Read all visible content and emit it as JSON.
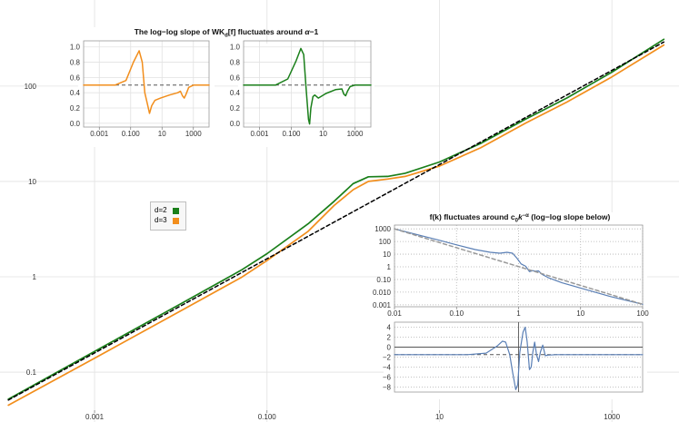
{
  "chart_data": [
    {
      "id": "main",
      "type": "line",
      "title": "",
      "xscale": "log",
      "yscale": "log",
      "xlim": [
        8e-05,
        6000
      ],
      "ylim": [
        0.03,
        800
      ],
      "xticks": [
        0.001,
        0.1,
        10,
        1000
      ],
      "xtick_labels": [
        "0.001",
        "0.100",
        "10",
        "1000"
      ],
      "yticks": [
        0.1,
        1,
        10,
        100
      ],
      "ytick_labels": [
        "0.1",
        "1",
        "10",
        "100"
      ],
      "grid": true,
      "legend": {
        "position": "center-left",
        "entries": [
          {
            "label": "d=2",
            "color": "#1a7f1a"
          },
          {
            "label": "d=3",
            "color": "#f28e1c"
          }
        ]
      },
      "series": [
        {
          "name": "d=2",
          "color": "#1a7f1a",
          "points": [
            [
              0.0001,
              0.052
            ],
            [
              0.001,
              0.165
            ],
            [
              0.01,
              0.52
            ],
            [
              0.05,
              1.17
            ],
            [
              0.1,
              1.75
            ],
            [
              0.3,
              3.6
            ],
            [
              0.6,
              6.2
            ],
            [
              1,
              9.5
            ],
            [
              1.5,
              11.2
            ],
            [
              2.5,
              11.3
            ],
            [
              4,
              12.2
            ],
            [
              10,
              16
            ],
            [
              30,
              25
            ],
            [
              100,
              45
            ],
            [
              300,
              75
            ],
            [
              1000,
              140
            ],
            [
              4000,
              310
            ]
          ]
        },
        {
          "name": "d=3",
          "color": "#f28e1c",
          "points": [
            [
              0.0001,
              0.045
            ],
            [
              0.001,
              0.14
            ],
            [
              0.01,
              0.44
            ],
            [
              0.05,
              0.98
            ],
            [
              0.1,
              1.48
            ],
            [
              0.3,
              3.0
            ],
            [
              0.6,
              5.6
            ],
            [
              1,
              8.2
            ],
            [
              1.5,
              10.0
            ],
            [
              2.5,
              10.6
            ],
            [
              4,
              11.3
            ],
            [
              10,
              14.5
            ],
            [
              30,
              22.5
            ],
            [
              100,
              41
            ],
            [
              300,
              68
            ],
            [
              1000,
              125
            ],
            [
              4000,
              270
            ]
          ]
        },
        {
          "name": "c k^-alpha reference",
          "color": "#000000",
          "dash": true,
          "points": [
            [
              0.0001,
              0.051
            ],
            [
              4000,
              290
            ]
          ]
        }
      ]
    },
    {
      "id": "inset-slope-d3",
      "type": "line",
      "xscale": "log",
      "xlim": [
        0.0001,
        10000
      ],
      "ylim": [
        -0.05,
        1.08
      ],
      "xticks": [
        0.001,
        0.1,
        10,
        1000
      ],
      "xtick_labels": [
        "0.001",
        "0.100",
        "10",
        "1000"
      ],
      "yticks": [
        0.0,
        0.2,
        0.4,
        0.6,
        0.8,
        1.0
      ],
      "ytick_labels": [
        "0.0",
        "0.2",
        "0.4",
        "0.6",
        "0.8",
        "1.0"
      ],
      "reference_y": 0.5,
      "series": [
        {
          "name": "d=3",
          "color": "#f28e1c",
          "points": [
            [
              0.0001,
              0.5
            ],
            [
              0.01,
              0.5
            ],
            [
              0.05,
              0.56
            ],
            [
              0.15,
              0.8
            ],
            [
              0.35,
              0.95
            ],
            [
              0.55,
              0.8
            ],
            [
              0.8,
              0.4
            ],
            [
              1.2,
              0.24
            ],
            [
              1.6,
              0.13
            ],
            [
              2.2,
              0.23
            ],
            [
              3.5,
              0.3
            ],
            [
              8,
              0.33
            ],
            [
              30,
              0.37
            ],
            [
              100,
              0.4
            ],
            [
              150,
              0.42
            ],
            [
              200,
              0.36
            ],
            [
              260,
              0.33
            ],
            [
              340,
              0.38
            ],
            [
              500,
              0.47
            ],
            [
              1000,
              0.5
            ],
            [
              10000,
              0.5
            ]
          ]
        }
      ]
    },
    {
      "id": "inset-slope-d2",
      "type": "line",
      "xscale": "log",
      "xlim": [
        0.0001,
        10000
      ],
      "ylim": [
        -0.05,
        1.08
      ],
      "xticks": [
        0.001,
        0.1,
        10,
        1000
      ],
      "xtick_labels": [
        "0.001",
        "0.100",
        "10",
        "1000"
      ],
      "yticks": [
        0.0,
        0.2,
        0.4,
        0.6,
        0.8,
        1.0
      ],
      "ytick_labels": [
        "0.0",
        "0.2",
        "0.4",
        "0.6",
        "0.8",
        "1.0"
      ],
      "reference_y": 0.5,
      "series": [
        {
          "name": "d=2",
          "color": "#1a7f1a",
          "points": [
            [
              0.0001,
              0.5
            ],
            [
              0.01,
              0.5
            ],
            [
              0.06,
              0.58
            ],
            [
              0.2,
              0.82
            ],
            [
              0.4,
              0.98
            ],
            [
              0.6,
              0.9
            ],
            [
              0.85,
              0.45
            ],
            [
              1.2,
              0.05
            ],
            [
              1.4,
              -0.01
            ],
            [
              1.7,
              0.2
            ],
            [
              2.3,
              0.35
            ],
            [
              3,
              0.37
            ],
            [
              5,
              0.33
            ],
            [
              15,
              0.39
            ],
            [
              60,
              0.44
            ],
            [
              150,
              0.45
            ],
            [
              200,
              0.38
            ],
            [
              260,
              0.36
            ],
            [
              340,
              0.42
            ],
            [
              500,
              0.48
            ],
            [
              1000,
              0.5
            ],
            [
              10000,
              0.5
            ]
          ]
        }
      ]
    },
    {
      "id": "inset-fk",
      "type": "line",
      "title_parts": [
        "f(k) fluctuates around c",
        "0",
        "k",
        "−α",
        " (log−log slope below)"
      ],
      "xscale": "log",
      "yscale": "log",
      "xlim": [
        0.01,
        100
      ],
      "ylim": [
        0.0007,
        2000
      ],
      "xticks": [
        0.01,
        0.1,
        1,
        10,
        100
      ],
      "xtick_labels": [
        "0.01",
        "0.10",
        "1",
        "10",
        "100"
      ],
      "yticks": [
        1000,
        100,
        10,
        1,
        0.1,
        0.01,
        0.001
      ],
      "ytick_labels": [
        "1000",
        "100",
        "10",
        "1",
        "0.10",
        "0.010",
        "0.001"
      ],
      "series": [
        {
          "name": "f(k)",
          "color": "#5a7fb5",
          "points": [
            [
              0.01,
              1000
            ],
            [
              0.05,
              135
            ],
            [
              0.1,
              55
            ],
            [
              0.2,
              23
            ],
            [
              0.35,
              14
            ],
            [
              0.5,
              12
            ],
            [
              0.65,
              14
            ],
            [
              0.8,
              12
            ],
            [
              0.95,
              4.5
            ],
            [
              1.1,
              1.7
            ],
            [
              1.3,
              1.1
            ],
            [
              1.5,
              0.42
            ],
            [
              1.7,
              0.5
            ],
            [
              1.9,
              0.45
            ],
            [
              2.1,
              0.48
            ],
            [
              2.4,
              0.25
            ],
            [
              3,
              0.14
            ],
            [
              5,
              0.055
            ],
            [
              10,
              0.021
            ],
            [
              30,
              0.0045
            ],
            [
              100,
              0.0011
            ]
          ]
        },
        {
          "name": "c0 k^-alpha",
          "color": "#999999",
          "dash": true,
          "points": [
            [
              0.01,
              1000
            ],
            [
              100,
              0.0011
            ]
          ]
        }
      ]
    },
    {
      "id": "inset-loglog-slope",
      "type": "line",
      "xscale": "log",
      "xlim": [
        0.01,
        100
      ],
      "ylim": [
        -9,
        5
      ],
      "yticks": [
        4,
        2,
        0,
        -2,
        -4,
        -6,
        -8
      ],
      "ytick_labels": [
        "4",
        "2",
        "0",
        "−2",
        "−4",
        "−6",
        "−8"
      ],
      "reference_y": -1.5,
      "series": [
        {
          "name": "slope",
          "color": "#5a7fb5",
          "points": [
            [
              0.01,
              -1.5
            ],
            [
              0.15,
              -1.5
            ],
            [
              0.3,
              -1.2
            ],
            [
              0.45,
              0.2
            ],
            [
              0.55,
              1.2
            ],
            [
              0.62,
              1.0
            ],
            [
              0.72,
              -1.5
            ],
            [
              0.8,
              -5
            ],
            [
              0.9,
              -8.5
            ],
            [
              0.97,
              -7.5
            ],
            [
              1.05,
              -1
            ],
            [
              1.18,
              3
            ],
            [
              1.28,
              4
            ],
            [
              1.38,
              1
            ],
            [
              1.5,
              -4.5
            ],
            [
              1.6,
              -4
            ],
            [
              1.7,
              -1
            ],
            [
              1.82,
              1.0
            ],
            [
              1.95,
              -1.5
            ],
            [
              2.1,
              -2.9
            ],
            [
              2.25,
              -1.0
            ],
            [
              2.45,
              0.4
            ],
            [
              2.7,
              -1.7
            ],
            [
              3,
              -1.6
            ],
            [
              4,
              -1.5
            ],
            [
              100,
              -1.5
            ]
          ]
        }
      ]
    }
  ],
  "title_inset_slopes": {
    "prefix": "The log−log slope of WK",
    "sub": "d",
    "mid": "[f] fluctuates around ",
    "alpha": "α",
    "suffix": "−1"
  },
  "legend": {
    "d2": "d=2",
    "d3": "d=3"
  }
}
